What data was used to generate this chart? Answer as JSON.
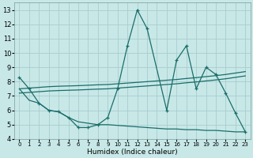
{
  "xlabel": "Humidex (Indice chaleur)",
  "x_ticks": [
    0,
    1,
    2,
    3,
    4,
    5,
    6,
    7,
    8,
    9,
    10,
    11,
    12,
    13,
    14,
    15,
    16,
    17,
    18,
    19,
    20,
    21,
    22,
    23
  ],
  "xlim": [
    -0.5,
    23.5
  ],
  "ylim": [
    4,
    13.5
  ],
  "y_ticks": [
    4,
    5,
    6,
    7,
    8,
    9,
    10,
    11,
    12,
    13
  ],
  "bg_color": "#c8e8e8",
  "grid_color": "#aacccc",
  "line_color": "#1a6e6a",
  "curve1_x": [
    0,
    1,
    2,
    3,
    4,
    5,
    6,
    7,
    8,
    9,
    10,
    11,
    12,
    13,
    15,
    16,
    17,
    18,
    19,
    20,
    21,
    22,
    23
  ],
  "curve1_y": [
    8.3,
    7.5,
    6.5,
    6.0,
    5.9,
    5.5,
    4.8,
    4.8,
    5.0,
    5.5,
    7.5,
    10.5,
    13.0,
    11.7,
    6.0,
    9.5,
    10.5,
    7.5,
    9.0,
    8.5,
    7.2,
    5.8,
    4.5
  ],
  "curve2_x": [
    0,
    1,
    2,
    3,
    4,
    5,
    6,
    7,
    8,
    9,
    10,
    11,
    12,
    13,
    14,
    15,
    16,
    17,
    18,
    19,
    20,
    21,
    22,
    23
  ],
  "curve2_y": [
    7.5,
    7.55,
    7.6,
    7.65,
    7.68,
    7.7,
    7.72,
    7.75,
    7.78,
    7.8,
    7.85,
    7.9,
    7.95,
    8.0,
    8.05,
    8.1,
    8.15,
    8.22,
    8.28,
    8.35,
    8.42,
    8.5,
    8.6,
    8.7
  ],
  "curve3_x": [
    0,
    1,
    2,
    3,
    4,
    5,
    6,
    7,
    8,
    9,
    10,
    11,
    12,
    13,
    14,
    15,
    16,
    17,
    18,
    19,
    20,
    21,
    22,
    23
  ],
  "curve3_y": [
    7.2,
    7.25,
    7.3,
    7.35,
    7.38,
    7.4,
    7.42,
    7.45,
    7.48,
    7.5,
    7.55,
    7.6,
    7.65,
    7.7,
    7.75,
    7.8,
    7.85,
    7.92,
    7.98,
    8.05,
    8.12,
    8.2,
    8.3,
    8.4
  ],
  "curve4_x": [
    0,
    1,
    2,
    3,
    4,
    5,
    6,
    7,
    8,
    9,
    10,
    11,
    12,
    13,
    14,
    15,
    16,
    17,
    18,
    19,
    20,
    21,
    22,
    23
  ],
  "curve4_y": [
    7.5,
    6.7,
    6.5,
    6.0,
    5.9,
    5.5,
    5.2,
    5.1,
    5.0,
    5.0,
    4.95,
    4.9,
    4.85,
    4.8,
    4.75,
    4.7,
    4.7,
    4.65,
    4.65,
    4.6,
    4.6,
    4.55,
    4.5,
    4.5
  ]
}
